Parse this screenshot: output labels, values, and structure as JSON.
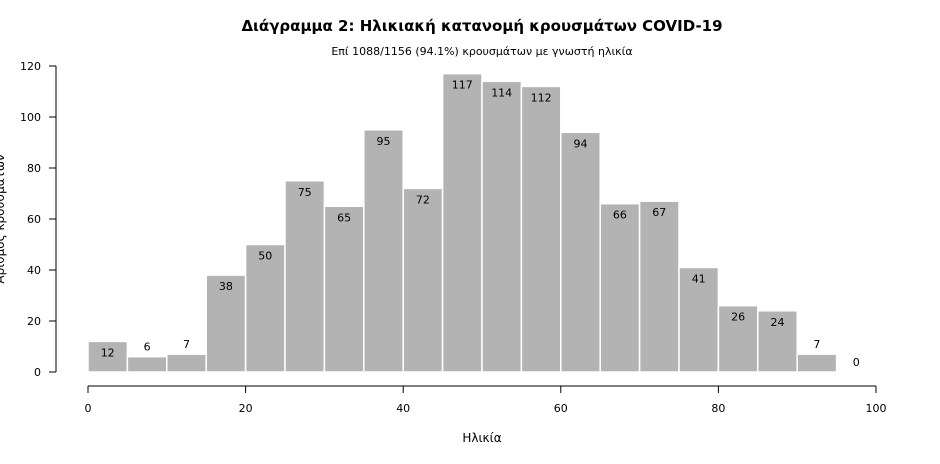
{
  "chart_data": {
    "type": "bar",
    "title": "Διάγραμμα 2: Ηλικιακή κατανομή κρουσμάτων COVID-19",
    "subtitle": "Επί 1088/1156 (94.1%) κρουσμάτων με γνωστή ηλικία",
    "xlabel": "Ηλικία",
    "ylabel": "Αριθμός κρουσμάτων",
    "bin_width": 5,
    "bins": [
      0,
      5,
      10,
      15,
      20,
      25,
      30,
      35,
      40,
      45,
      50,
      55,
      60,
      65,
      70,
      75,
      80,
      85,
      90,
      95
    ],
    "values": [
      12,
      6,
      7,
      38,
      50,
      75,
      65,
      95,
      72,
      117,
      114,
      112,
      94,
      66,
      67,
      41,
      26,
      24,
      7,
      0
    ],
    "xlim": [
      0,
      100
    ],
    "ylim": [
      0,
      120
    ],
    "xticks": [
      0,
      20,
      40,
      60,
      80,
      100
    ],
    "yticks": [
      0,
      20,
      40,
      60,
      80,
      100,
      120
    ],
    "grid": false,
    "bar_color": "#b3b3b3",
    "bar_edge_color": "#ffffff"
  }
}
